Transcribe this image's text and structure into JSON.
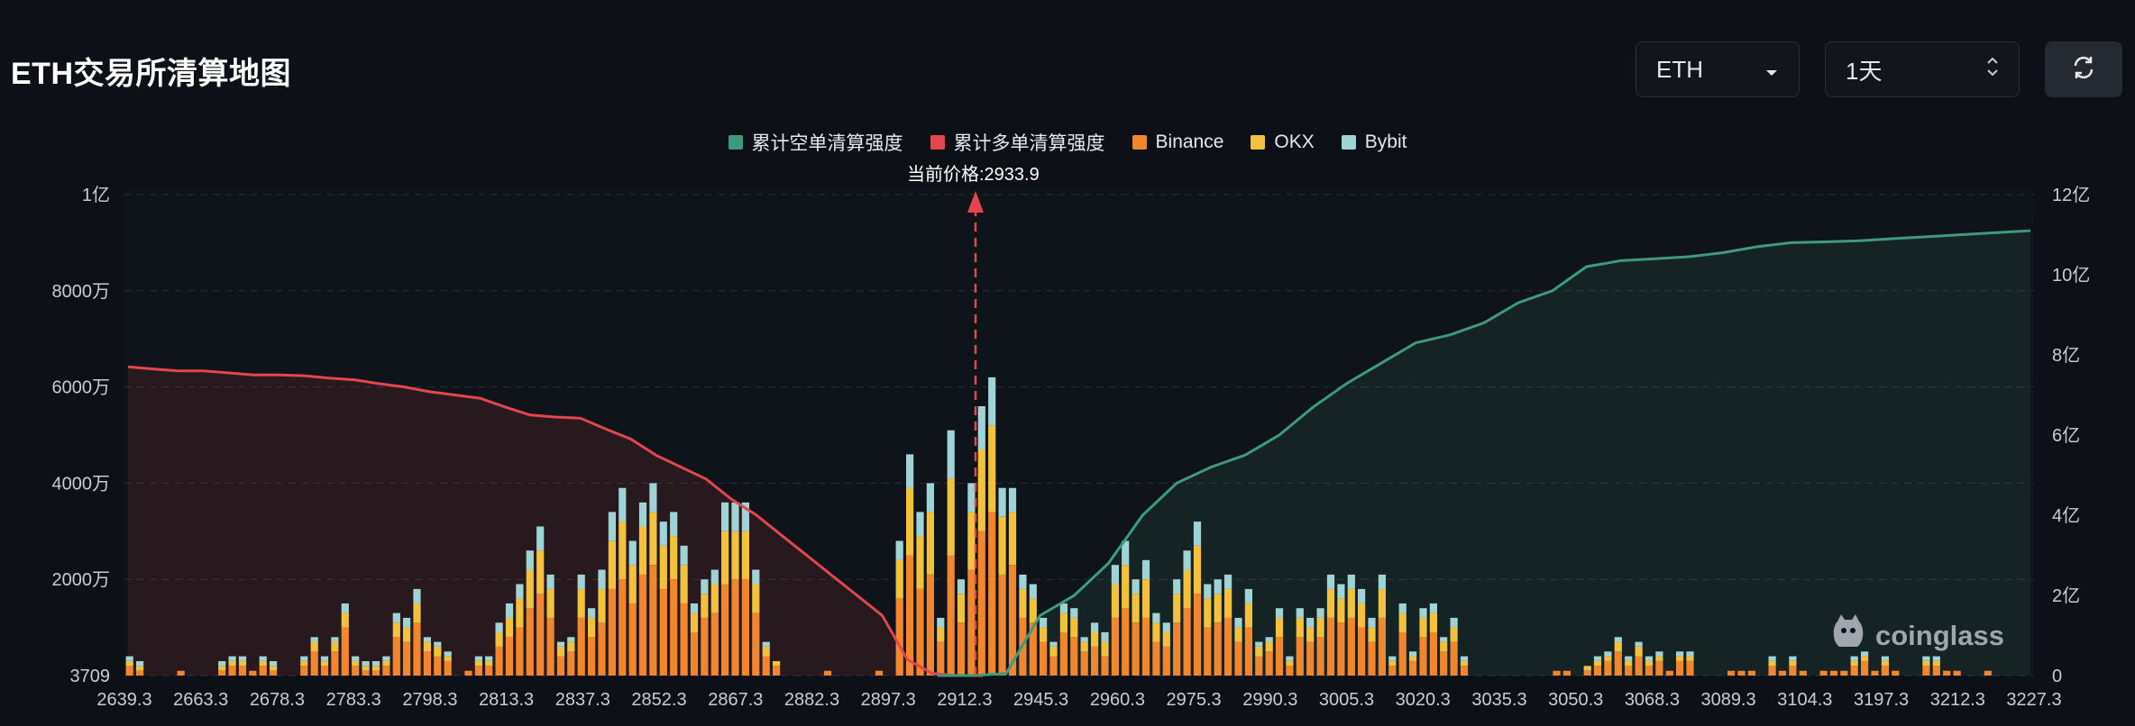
{
  "header": {
    "title": "ETH交易所清算地图",
    "coin_select": "ETH",
    "period_select": "1天"
  },
  "legend": [
    {
      "label": "累计空单清算强度",
      "color": "#3f9a7c"
    },
    {
      "label": "累计多单清算强度",
      "color": "#e2464e"
    },
    {
      "label": "Binance",
      "color": "#f0862e"
    },
    {
      "label": "OKX",
      "color": "#f3c23d"
    },
    {
      "label": "Bybit",
      "color": "#9fd3d6"
    }
  ],
  "price_label": "当前价格:2933.9",
  "watermark": "coinglass",
  "chart_data": {
    "type": "bar",
    "current_price": 2933.9,
    "x_tick_labels": [
      "2639.3",
      "2663.3",
      "2678.3",
      "2783.3",
      "2798.3",
      "2813.3",
      "2837.3",
      "2852.3",
      "2867.3",
      "2882.3",
      "2897.3",
      "2912.3",
      "2945.3",
      "2960.3",
      "2975.3",
      "2990.3",
      "3005.3",
      "3020.3",
      "3035.3",
      "3050.3",
      "3068.3",
      "3089.3",
      "3104.3",
      "3197.3",
      "3212.3",
      "3227.3"
    ],
    "y_left_ticks": [
      "3709",
      "2000万",
      "4000万",
      "6000万",
      "8000万",
      "1亿"
    ],
    "y_left_range": [
      3709,
      100000000
    ],
    "y_right_ticks": [
      "0",
      "2亿",
      "4亿",
      "6亿",
      "8亿",
      "10亿",
      "12亿"
    ],
    "y_right_range": [
      0,
      1200000000
    ],
    "bar_series": [
      {
        "name": "Binance",
        "color": "#f0862e",
        "values": [
          2,
          1,
          0,
          0,
          0,
          1,
          0,
          0,
          0,
          1,
          2,
          2,
          1,
          2,
          1,
          0,
          0,
          2,
          5,
          2,
          5,
          10,
          2,
          1,
          1,
          2,
          8,
          7,
          11,
          5,
          4,
          3,
          0,
          1,
          2,
          2,
          6,
          8,
          10,
          14,
          17,
          12,
          4,
          5,
          12,
          8,
          11,
          18,
          20,
          15,
          21,
          23,
          18,
          20,
          15,
          9,
          12,
          13,
          19,
          20,
          20,
          13,
          4,
          2,
          0,
          0,
          0,
          0,
          1,
          0,
          0,
          0,
          0,
          1,
          0,
          16,
          25,
          18,
          21,
          7,
          25,
          11,
          22,
          30,
          34,
          21,
          23,
          12,
          11,
          7,
          4,
          9,
          8,
          5,
          6,
          4,
          12,
          14,
          11,
          12,
          7,
          6,
          11,
          14,
          17,
          10,
          11,
          12,
          7,
          10,
          4,
          5,
          8,
          2,
          8,
          7,
          8,
          12,
          11,
          12,
          10,
          7,
          12,
          2,
          9,
          3,
          8,
          9,
          5,
          7,
          2,
          0,
          0,
          0,
          0,
          0,
          0,
          0,
          0,
          1,
          1,
          0,
          1,
          2,
          3,
          5,
          2,
          4,
          2,
          3,
          1,
          3,
          3,
          0,
          0,
          0,
          1,
          1,
          1,
          0,
          2,
          1,
          2,
          1,
          0,
          1,
          1,
          1,
          2,
          3,
          1,
          2,
          1,
          0,
          0,
          2,
          2,
          1,
          1,
          0,
          0,
          1,
          0,
          0,
          0,
          0
        ]
      },
      {
        "name": "OKX",
        "color": "#f3c23d",
        "values": [
          1,
          1,
          0,
          0,
          0,
          0,
          0,
          0,
          0,
          1,
          1,
          1,
          0,
          1,
          1,
          0,
          0,
          1,
          2,
          1,
          2,
          3,
          1,
          1,
          1,
          1,
          3,
          3,
          4,
          2,
          2,
          1,
          0,
          0,
          1,
          1,
          3,
          4,
          6,
          8,
          9,
          6,
          2,
          2,
          6,
          4,
          7,
          10,
          12,
          8,
          10,
          11,
          9,
          9,
          8,
          4,
          5,
          6,
          11,
          10,
          10,
          6,
          2,
          1,
          0,
          0,
          0,
          0,
          0,
          0,
          0,
          0,
          0,
          0,
          0,
          8,
          14,
          11,
          13,
          3,
          16,
          6,
          12,
          17,
          18,
          12,
          11,
          6,
          5,
          3,
          2,
          4,
          4,
          2,
          3,
          3,
          7,
          9,
          6,
          8,
          4,
          3,
          6,
          8,
          10,
          6,
          6,
          6,
          3,
          5,
          2,
          2,
          4,
          1,
          4,
          3,
          4,
          6,
          5,
          6,
          5,
          3,
          6,
          1,
          4,
          1,
          4,
          4,
          2,
          3,
          1,
          0,
          0,
          0,
          0,
          0,
          0,
          0,
          0,
          0,
          0,
          0,
          1,
          1,
          1,
          2,
          1,
          2,
          1,
          1,
          0,
          1,
          1,
          0,
          0,
          0,
          0,
          0,
          0,
          0,
          1,
          0,
          1,
          0,
          0,
          0,
          0,
          0,
          1,
          1,
          0,
          1,
          0,
          0,
          0,
          1,
          1,
          0,
          0,
          0,
          0,
          0,
          0,
          0,
          0,
          0
        ]
      },
      {
        "name": "Bybit",
        "color": "#9fd3d6",
        "values": [
          1,
          1,
          0,
          0,
          0,
          0,
          0,
          0,
          0,
          1,
          1,
          1,
          0,
          1,
          1,
          0,
          0,
          1,
          1,
          1,
          1,
          2,
          1,
          1,
          1,
          1,
          2,
          2,
          3,
          1,
          1,
          1,
          0,
          0,
          1,
          1,
          2,
          3,
          3,
          4,
          5,
          3,
          1,
          1,
          3,
          2,
          4,
          6,
          7,
          5,
          5,
          6,
          5,
          5,
          4,
          2,
          3,
          3,
          6,
          6,
          6,
          3,
          1,
          0,
          0,
          0,
          0,
          0,
          0,
          0,
          0,
          0,
          0,
          0,
          0,
          4,
          7,
          5,
          6,
          2,
          10,
          3,
          6,
          9,
          10,
          6,
          5,
          3,
          3,
          2,
          1,
          2,
          2,
          1,
          2,
          2,
          4,
          5,
          3,
          4,
          2,
          2,
          3,
          4,
          5,
          3,
          3,
          3,
          2,
          3,
          1,
          1,
          2,
          1,
          2,
          2,
          2,
          3,
          3,
          3,
          3,
          2,
          3,
          1,
          2,
          1,
          2,
          2,
          1,
          2,
          1,
          0,
          0,
          0,
          0,
          0,
          0,
          0,
          0,
          0,
          0,
          0,
          0,
          1,
          1,
          1,
          1,
          1,
          1,
          1,
          0,
          1,
          1,
          0,
          0,
          0,
          0,
          0,
          0,
          0,
          1,
          0,
          1,
          0,
          0,
          0,
          0,
          0,
          1,
          1,
          0,
          1,
          0,
          0,
          0,
          1,
          1,
          0,
          0,
          0,
          0,
          0,
          0,
          0,
          0,
          0
        ]
      }
    ],
    "cumulative_long_line": {
      "name": "累计多单清算强度",
      "color": "#e2464e",
      "values": [
        7.7,
        7.65,
        7.6,
        7.6,
        7.55,
        7.5,
        7.5,
        7.48,
        7.42,
        7.38,
        7.28,
        7.2,
        7.08,
        7.0,
        6.92,
        6.7,
        6.5,
        6.45,
        6.42,
        6.15,
        5.9,
        5.5,
        5.2,
        4.9,
        4.4,
        4.0,
        3.5,
        3.0,
        2.5,
        2.0,
        1.5,
        0.4,
        0.05,
        0.0,
        0.0
      ]
    },
    "cumulative_short_line": {
      "name": "累计空单清算强度",
      "color": "#3f9a7c",
      "values": [
        0.0,
        0.0,
        0.05,
        1.5,
        2.0,
        2.8,
        4.0,
        4.8,
        5.2,
        5.5,
        6.0,
        6.7,
        7.3,
        7.8,
        8.3,
        8.5,
        8.8,
        9.3,
        9.6,
        10.2,
        10.35,
        10.4,
        10.45,
        10.55,
        10.7,
        10.8,
        10.82,
        10.85,
        10.9,
        10.95,
        11.0,
        11.05,
        11.1
      ]
    }
  }
}
